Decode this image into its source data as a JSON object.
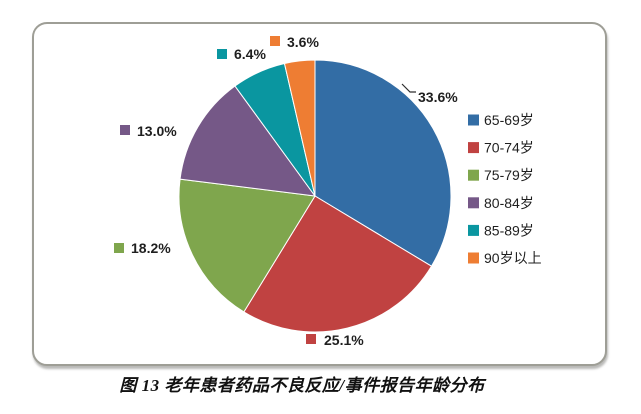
{
  "figure": {
    "caption": "图 13 老年患者药品不良反应/事件报告年龄分布"
  },
  "chart_data": {
    "type": "pie",
    "title": "",
    "categories": [
      "65-69岁",
      "70-74岁",
      "75-79岁",
      "80-84岁",
      "85-89岁",
      "90岁以上"
    ],
    "values": [
      33.6,
      25.1,
      18.2,
      13.0,
      6.4,
      3.6
    ],
    "value_unit": "%",
    "data_labels": [
      "33.6%",
      "25.1%",
      "18.2%",
      "13.0%",
      "6.4%",
      "3.6%"
    ],
    "colors": [
      "#336DA5",
      "#C04241",
      "#7FA64D",
      "#755887",
      "#0A96A0",
      "#EE7D33"
    ],
    "start_angle_deg": 0,
    "direction": "clockwise",
    "legend_position": "right",
    "grid": false
  }
}
